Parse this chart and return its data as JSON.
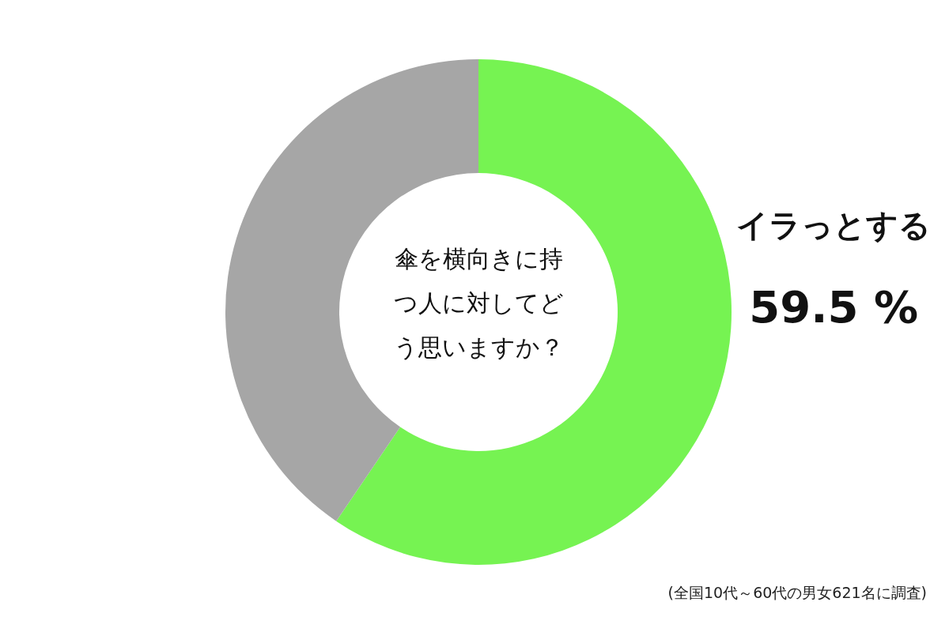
{
  "chart_data": {
    "type": "donut",
    "title": "傘を横向きに持つ人に対してどう思いますか？",
    "categories": [
      "イラっとする",
      null
    ],
    "values": [
      59.5,
      40.5
    ],
    "value_labels": [
      "59.5 %",
      null
    ],
    "colors": [
      "#76f352",
      "#a6a6a6"
    ],
    "legend": false,
    "annotations": [
      "(全国10代～60代の男女621名に調査)"
    ]
  }
}
